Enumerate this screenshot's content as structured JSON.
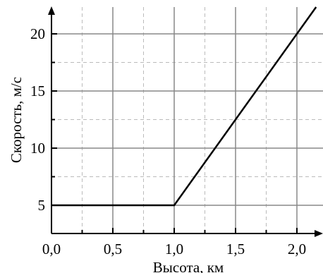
{
  "chart_data": {
    "type": "line",
    "title": "",
    "xlabel": "Высота, км",
    "ylabel": "Скорость, м/с",
    "xlim": [
      0.0,
      2.2
    ],
    "ylim": [
      3.0,
      22.7
    ],
    "x_ticks": [
      0.0,
      0.5,
      1.0,
      1.5,
      2.0
    ],
    "x_tick_labels": [
      "0,0",
      "0,5",
      "1,0",
      "1,5",
      "2,0"
    ],
    "y_ticks": [
      5,
      10,
      15,
      20
    ],
    "y_tick_labels": [
      "5",
      "10",
      "15",
      "20"
    ],
    "x_minor_ticks": [
      0.25,
      0.75,
      1.25,
      1.75,
      2.25
    ],
    "y_minor_ticks": [
      7.5,
      12.5,
      17.5
    ],
    "grid": true,
    "legend": "none",
    "series": [
      {
        "values_x": [
          0.0,
          1.0,
          2.2
        ],
        "values_y": [
          5,
          5,
          23
        ],
        "color": "#000000"
      }
    ]
  },
  "colors": {
    "line": "#000000",
    "grid_major": "#888888",
    "grid_minor": "#bbbbbb",
    "axis": "#000000"
  }
}
